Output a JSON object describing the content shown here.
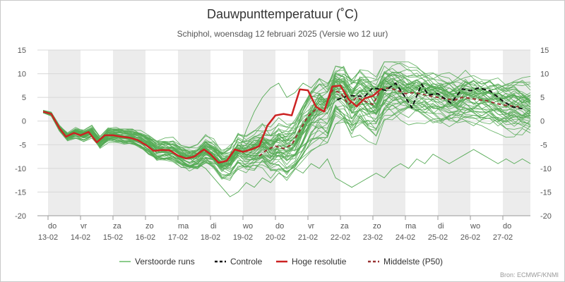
{
  "chart_data": {
    "type": "line",
    "title": "Dauwpunttemperatuur (˚C)",
    "subtitle": "Schiphol, woensdag 12 februari 2025 (Versie wo 12 uur)",
    "source": "Bron: ECMWF/KNMI",
    "ylim": [
      -20,
      15
    ],
    "yticks": [
      15,
      10,
      5,
      0,
      -5,
      -10,
      -15,
      -20
    ],
    "xlim": [
      0,
      15.1
    ],
    "grid": true,
    "legend_position": "bottom",
    "x_ticks": [
      {
        "x": 0,
        "day": "do",
        "date": "13-02"
      },
      {
        "x": 1,
        "day": "vr",
        "date": "14-02"
      },
      {
        "x": 2,
        "day": "za",
        "date": "15-02"
      },
      {
        "x": 3,
        "day": "zo",
        "date": "16-02"
      },
      {
        "x": 4,
        "day": "ma",
        "date": "17-02"
      },
      {
        "x": 5,
        "day": "di",
        "date": "18-02"
      },
      {
        "x": 6,
        "day": "wo",
        "date": "19-02"
      },
      {
        "x": 7,
        "day": "do",
        "date": "20-02"
      },
      {
        "x": 8,
        "day": "vr",
        "date": "21-02"
      },
      {
        "x": 9,
        "day": "za",
        "date": "22-02"
      },
      {
        "x": 10,
        "day": "zo",
        "date": "23-02"
      },
      {
        "x": 11,
        "day": "ma",
        "date": "24-02"
      },
      {
        "x": 12,
        "day": "di",
        "date": "25-02"
      },
      {
        "x": 13,
        "day": "wo",
        "date": "26-02"
      },
      {
        "x": 14,
        "day": "do",
        "date": "27-02"
      }
    ],
    "shaded_days": [
      0,
      2,
      4,
      6,
      8,
      10,
      12,
      14
    ],
    "legend": [
      {
        "label": "Verstoorde runs",
        "color": "#66bb66",
        "dash": "solid"
      },
      {
        "label": "Controle",
        "color": "#111111",
        "dash": "dashed"
      },
      {
        "label": "Hoge resolutie",
        "color": "#cc2222",
        "dash": "solid"
      },
      {
        "label": "Middelste (P50)",
        "color": "#993333",
        "dash": "dashed"
      }
    ],
    "series": [
      {
        "name": "Controle",
        "color": "#111111",
        "dash": "dashed",
        "points": [
          [
            8.9,
            4.5
          ],
          [
            9.25,
            5.4
          ],
          [
            9.75,
            5.2
          ],
          [
            10,
            7
          ],
          [
            10.4,
            6.5
          ],
          [
            10.7,
            8
          ],
          [
            11,
            5
          ],
          [
            11.2,
            2.8
          ],
          [
            11.5,
            7.8
          ],
          [
            11.7,
            5.5
          ],
          [
            12,
            5.8
          ],
          [
            12.4,
            3.8
          ],
          [
            12.75,
            6.8
          ],
          [
            13,
            6.4
          ],
          [
            13.25,
            7
          ],
          [
            13.6,
            6.4
          ],
          [
            14,
            4.2
          ],
          [
            14.3,
            3
          ],
          [
            14.6,
            2.6
          ]
        ]
      },
      {
        "name": "Hoge resolutie",
        "color": "#cc2222",
        "dash": "solid",
        "points": [
          [
            -0.15,
            2
          ],
          [
            0.1,
            1.5
          ],
          [
            0.35,
            -1.5
          ],
          [
            0.55,
            -3.3
          ],
          [
            0.8,
            -2.5
          ],
          [
            1,
            -3
          ],
          [
            1.25,
            -2.3
          ],
          [
            1.5,
            -4.5
          ],
          [
            1.75,
            -3
          ],
          [
            2,
            -3
          ],
          [
            2.25,
            -3.3
          ],
          [
            2.5,
            -3.5
          ],
          [
            2.75,
            -4
          ],
          [
            3,
            -5
          ],
          [
            3.25,
            -6.3
          ],
          [
            3.5,
            -6.1
          ],
          [
            3.75,
            -6.2
          ],
          [
            4,
            -7.3
          ],
          [
            4.25,
            -7.9
          ],
          [
            4.5,
            -7.5
          ],
          [
            4.8,
            -6
          ],
          [
            5,
            -7
          ],
          [
            5.25,
            -8.8
          ],
          [
            5.5,
            -8.4
          ],
          [
            5.75,
            -6
          ],
          [
            6,
            -6.5
          ],
          [
            6.25,
            -6
          ],
          [
            6.5,
            -5.3
          ],
          [
            6.75,
            -1
          ],
          [
            7,
            1.2
          ],
          [
            7.25,
            1.5
          ],
          [
            7.5,
            1.2
          ],
          [
            7.75,
            6.7
          ],
          [
            8,
            6.5
          ],
          [
            8.25,
            3
          ],
          [
            8.5,
            2
          ],
          [
            8.75,
            7.3
          ],
          [
            9,
            7.5
          ],
          [
            9.25,
            4.6
          ],
          [
            9.5,
            3.1
          ],
          [
            9.75,
            4.8
          ],
          [
            10,
            5.3
          ],
          [
            10.25,
            6.8
          ]
        ]
      },
      {
        "name": "Middelste (P50)",
        "color": "#993333",
        "dash": "dashed",
        "points": [
          [
            6.5,
            -7.4
          ],
          [
            6.75,
            -6
          ],
          [
            7,
            -5.3
          ],
          [
            7.25,
            -5.8
          ],
          [
            7.5,
            -5
          ],
          [
            7.75,
            -2
          ],
          [
            8,
            1
          ],
          [
            8.25,
            2.5
          ],
          [
            8.5,
            2.2
          ],
          [
            8.75,
            6.5
          ],
          [
            9,
            6
          ],
          [
            9.25,
            3.5
          ],
          [
            9.5,
            5
          ],
          [
            9.75,
            4.2
          ],
          [
            10,
            3.5
          ],
          [
            10.25,
            6.8
          ],
          [
            10.5,
            7
          ],
          [
            10.75,
            6.5
          ],
          [
            11,
            5.8
          ],
          [
            11.25,
            6
          ],
          [
            11.5,
            5.7
          ],
          [
            11.75,
            5.3
          ],
          [
            12,
            5
          ],
          [
            12.25,
            4.7
          ],
          [
            12.5,
            4.4
          ],
          [
            12.75,
            5
          ],
          [
            13,
            4.8
          ],
          [
            13.25,
            4.5
          ],
          [
            13.5,
            4.3
          ],
          [
            13.75,
            3.8
          ],
          [
            14,
            3.4
          ],
          [
            14.25,
            3.2
          ],
          [
            14.5,
            3
          ]
        ]
      }
    ],
    "ensemble": {
      "name": "Verstoorde runs",
      "color": "#55aa55",
      "member_count": 50,
      "x_step": 0.25,
      "median": [
        2,
        1.5,
        -1.5,
        -3.3,
        -2.5,
        -3,
        -2.3,
        -4.5,
        -3,
        -3,
        -3.3,
        -3.5,
        -4,
        -5,
        -6.3,
        -6.1,
        -6.2,
        -7.3,
        -7.9,
        -7.5,
        -6,
        -7,
        -8.8,
        -8.4,
        -6,
        -6.5,
        -6,
        -5.3,
        -6.5,
        -5.3,
        -5.8,
        -5,
        -2,
        1,
        2.5,
        2.2,
        6.5,
        6,
        3.5,
        5,
        4.2,
        3.5,
        6.8,
        7,
        6.5,
        5.8,
        6,
        5.7,
        5.3,
        5,
        4.7,
        4.4,
        5,
        4.8,
        4.5,
        4.3,
        3.8,
        3.4,
        3.2,
        3,
        3
      ],
      "spread": [
        0.3,
        0.4,
        0.6,
        0.8,
        1,
        1.1,
        1.2,
        1.3,
        1.4,
        1.5,
        1.6,
        1.7,
        1.8,
        1.9,
        2,
        2.1,
        2.2,
        2.3,
        2.4,
        2.5,
        2.7,
        2.9,
        3.1,
        3.3,
        3.5,
        3.8,
        4,
        4.3,
        4.6,
        5,
        5.3,
        5.6,
        5.8,
        6,
        6,
        6,
        6,
        6,
        6,
        6,
        6,
        5.8,
        5.6,
        5.4,
        5.3,
        5.2,
        5.1,
        5,
        5,
        5,
        5,
        5,
        5,
        5,
        5,
        5,
        5,
        5,
        5,
        5,
        5
      ],
      "highlights": [
        [
          2,
          1.5,
          -1.5,
          -3.3,
          -2.5,
          -3,
          -2.3,
          -4.5,
          -3,
          -3,
          -3.3,
          -3.5,
          -4,
          -5,
          -6.3,
          -6.1,
          -6.2,
          -7.3,
          -7.9,
          -7.5,
          -6,
          -7,
          -8.8,
          -9,
          -7,
          -2,
          2,
          5,
          7,
          8,
          5,
          6,
          8,
          7,
          9,
          8,
          9,
          7,
          8,
          9,
          8,
          7,
          8,
          9,
          8,
          7,
          7,
          8,
          7,
          6,
          7,
          6,
          6,
          5,
          6,
          5,
          6,
          5,
          5,
          4,
          4
        ],
        [
          2,
          1.5,
          -1.5,
          -3.3,
          -2.5,
          -3,
          -2.3,
          -4.5,
          -3,
          -3,
          -3.3,
          -3.5,
          -4,
          -5,
          -6.3,
          -6.1,
          -6.2,
          -7.3,
          -7.9,
          -9,
          -10,
          -12,
          -14,
          -16,
          -15,
          -13,
          -14,
          -12,
          -13,
          -11,
          -12,
          -10,
          -11,
          -9,
          -10,
          -8,
          -12,
          -13,
          -14,
          -13,
          -12,
          -11,
          -12,
          -10,
          -9,
          -10,
          -8,
          -9,
          -7,
          -8,
          -9,
          -8,
          -7,
          -6,
          -7,
          -8,
          -9,
          -8,
          -9,
          -8,
          -9
        ]
      ]
    }
  }
}
